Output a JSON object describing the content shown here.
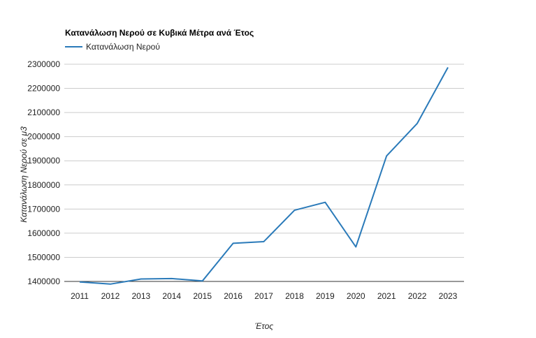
{
  "chart_data": {
    "type": "line",
    "title": "Κατανάλωση Νερού σε Κυβικά Μέτρα ανά Έτος",
    "xlabel": "Έτος",
    "ylabel": "Κατανάλωση Νερού σε μ3",
    "categories": [
      "2011",
      "2012",
      "2013",
      "2014",
      "2015",
      "2016",
      "2017",
      "2018",
      "2019",
      "2020",
      "2021",
      "2022",
      "2023"
    ],
    "series": [
      {
        "name": "Κατανάλωση Νερού",
        "color": "#2a7ab9",
        "values": [
          1398000,
          1389000,
          1410000,
          1412000,
          1402000,
          1558000,
          1565000,
          1695000,
          1728000,
          1543000,
          1920000,
          2055000,
          2287000
        ]
      }
    ],
    "ylim": [
      1400000,
      2300000
    ],
    "yticks": [
      1400000,
      1500000,
      1600000,
      1700000,
      1800000,
      1900000,
      2000000,
      2100000,
      2200000,
      2300000
    ],
    "ytick_labels": [
      "1400000",
      "1500000",
      "1600000",
      "1700000",
      "1800000",
      "1900000",
      "2000000",
      "2100000",
      "2200000",
      "2300000"
    ],
    "grid": true,
    "legend_position": "top-left"
  }
}
